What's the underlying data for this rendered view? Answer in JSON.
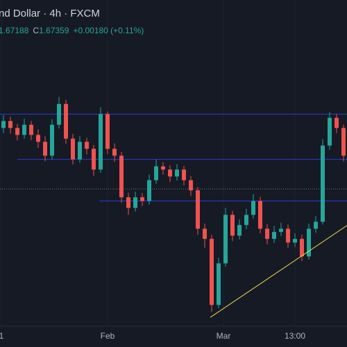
{
  "chart_data": {
    "type": "candlestick",
    "title": "nd Dollar · 4h · FXCM",
    "ohlc_info": {
      "open_value": "1.67188",
      "close_label": "C",
      "close_value": "1.67359",
      "change": "+0.00180 (+0.11%)"
    },
    "up_color": "#26a69a",
    "down_color": "#ef5350",
    "ylim": [
      1.644,
      1.7146
    ],
    "xlim": [
      -0.5,
      49.5
    ],
    "grid": true,
    "xticks": [
      {
        "value": -0.3,
        "label": "1"
      },
      {
        "value": 15,
        "label": "Feb"
      },
      {
        "value": 31.7,
        "label": "Mar"
      },
      {
        "value": 42,
        "label": "13:00"
      }
    ],
    "candles": [
      [
        1.6869,
        1.6897,
        1.6858,
        1.6884
      ],
      [
        1.6884,
        1.6893,
        1.6857,
        1.6869
      ],
      [
        1.6869,
        1.6878,
        1.6842,
        1.6854
      ],
      [
        1.6854,
        1.6889,
        1.6846,
        1.6876
      ],
      [
        1.6876,
        1.6884,
        1.6843,
        1.6854
      ],
      [
        1.6854,
        1.6866,
        1.6826,
        1.6839
      ],
      [
        1.6839,
        1.6851,
        1.6797,
        1.6809
      ],
      [
        1.6809,
        1.6888,
        1.6801,
        1.6876
      ],
      [
        1.6876,
        1.6936,
        1.6868,
        1.6921
      ],
      [
        1.6921,
        1.693,
        1.6835,
        1.6846
      ],
      [
        1.6846,
        1.6856,
        1.679,
        1.6801
      ],
      [
        1.6801,
        1.6851,
        1.6794,
        1.6839
      ],
      [
        1.6839,
        1.6848,
        1.6812,
        1.6824
      ],
      [
        1.6824,
        1.6832,
        1.6765,
        1.6779
      ],
      [
        1.6779,
        1.6914,
        1.6772,
        1.6899
      ],
      [
        1.6899,
        1.6905,
        1.6813,
        1.6824
      ],
      [
        1.6824,
        1.6836,
        1.6796,
        1.6809
      ],
      [
        1.6809,
        1.6817,
        1.6707,
        1.6719
      ],
      [
        1.6719,
        1.6729,
        1.6681,
        1.6696
      ],
      [
        1.6696,
        1.6731,
        1.6688,
        1.6719
      ],
      [
        1.6719,
        1.6728,
        1.67,
        1.6711
      ],
      [
        1.6711,
        1.6768,
        1.6703,
        1.6756
      ],
      [
        1.6756,
        1.6801,
        1.6748,
        1.6786
      ],
      [
        1.6786,
        1.6795,
        1.6768,
        1.6779
      ],
      [
        1.6779,
        1.6788,
        1.6752,
        1.6764
      ],
      [
        1.6764,
        1.6791,
        1.6755,
        1.6779
      ],
      [
        1.6779,
        1.6787,
        1.6745,
        1.6756
      ],
      [
        1.6756,
        1.6765,
        1.6722,
        1.6734
      ],
      [
        1.6734,
        1.6741,
        1.6638,
        1.6651
      ],
      [
        1.6651,
        1.6662,
        1.661,
        1.6629
      ],
      [
        1.6629,
        1.6638,
        1.6471,
        1.6486
      ],
      [
        1.6486,
        1.6588,
        1.6479,
        1.6576
      ],
      [
        1.6576,
        1.6696,
        1.6569,
        1.6681
      ],
      [
        1.6681,
        1.669,
        1.6624,
        1.6636
      ],
      [
        1.6636,
        1.6671,
        1.6628,
        1.6659
      ],
      [
        1.6659,
        1.6694,
        1.665,
        1.6681
      ],
      [
        1.6681,
        1.6726,
        1.6673,
        1.6711
      ],
      [
        1.6711,
        1.672,
        1.6641,
        1.6651
      ],
      [
        1.6651,
        1.6661,
        1.6617,
        1.6629
      ],
      [
        1.6629,
        1.6657,
        1.662,
        1.6644
      ],
      [
        1.6644,
        1.6664,
        1.6635,
        1.6651
      ],
      [
        1.6651,
        1.666,
        1.661,
        1.6621
      ],
      [
        1.6621,
        1.6641,
        1.6612,
        1.6629
      ],
      [
        1.6629,
        1.6638,
        1.6581,
        1.6591
      ],
      [
        1.6591,
        1.6662,
        1.6584,
        1.6651
      ],
      [
        1.6651,
        1.6678,
        1.6642,
        1.6666
      ],
      [
        1.6666,
        1.6845,
        1.666,
        1.6831
      ],
      [
        1.6831,
        1.6903,
        1.6822,
        1.6891
      ],
      [
        1.6891,
        1.6899,
        1.6858,
        1.6869
      ],
      [
        1.6869,
        1.6876,
        1.6797,
        1.6809
      ]
    ],
    "hlines": [
      {
        "value": 1.6899,
        "from_index": -0.5,
        "color": "#2a3cd6"
      },
      {
        "value": 1.6801,
        "from_index": 2,
        "color": "#2a3cd6"
      },
      {
        "value": 1.6711,
        "from_index": 13.8,
        "color": "#2a3cd6"
      }
    ],
    "price_line": {
      "value": 1.6737,
      "color": "#6a7a8c"
    },
    "trendline": {
      "x": [
        29.8,
        49.5
      ],
      "y": [
        1.6459,
        1.6658
      ],
      "color": "#e8d94a"
    }
  }
}
